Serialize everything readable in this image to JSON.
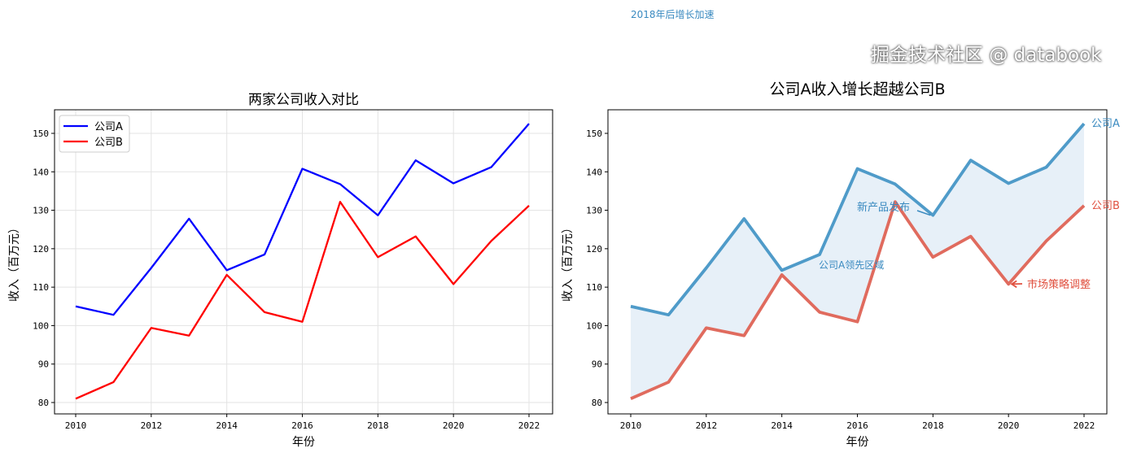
{
  "top_annotation": "2018年后增长加速",
  "watermark": "掘金技术社区 @ databook",
  "colors": {
    "a_left": "#0000ff",
    "b_left": "#ff0000",
    "a_right": "#4f9bc9",
    "b_right": "#e06b5e",
    "fill": "#e3edf7",
    "annot_blue": "#3a8ac0",
    "annot_red": "#e0503f"
  },
  "chart_data": [
    {
      "type": "line",
      "title": "两家公司收入对比",
      "xlabel": "年份",
      "ylabel": "收入（百万元）",
      "xlim": [
        2009.4,
        2022.6
      ],
      "ylim": [
        77.5,
        156
      ],
      "grid": true,
      "legend": "top-left",
      "x": [
        2010,
        2011,
        2012,
        2013,
        2014,
        2015,
        2016,
        2017,
        2018,
        2019,
        2020,
        2021,
        2022
      ],
      "xticks": [
        "2010",
        "2012",
        "2014",
        "2016",
        "2018",
        "2020",
        "2022"
      ],
      "yticks": [
        "80",
        "90",
        "100",
        "110",
        "120",
        "130",
        "140",
        "150"
      ],
      "series": [
        {
          "name": "公司A",
          "values": [
            105,
            102.8,
            115,
            127.8,
            114.4,
            118.5,
            140.8,
            136.8,
            128.7,
            143,
            137,
            141.2,
            152.5
          ]
        },
        {
          "name": "公司B",
          "values": [
            81,
            85.3,
            99.4,
            97.4,
            113.2,
            103.5,
            101,
            132.2,
            117.8,
            123.2,
            110.8,
            122,
            131.2
          ]
        }
      ]
    },
    {
      "type": "line",
      "title": "公司A收入增长超越公司B",
      "xlabel": "年份",
      "ylabel": "收入（百万元）",
      "xlim": [
        2009.4,
        2022.6
      ],
      "ylim": [
        77.5,
        156
      ],
      "grid": false,
      "x": [
        2010,
        2011,
        2012,
        2013,
        2014,
        2015,
        2016,
        2017,
        2018,
        2019,
        2020,
        2021,
        2022
      ],
      "xticks": [
        "2010",
        "2012",
        "2014",
        "2016",
        "2018",
        "2020",
        "2022"
      ],
      "yticks": [
        "80",
        "90",
        "100",
        "110",
        "120",
        "130",
        "140",
        "150"
      ],
      "series": [
        {
          "name": "公司A",
          "values": [
            105,
            102.8,
            115,
            127.8,
            114.4,
            118.5,
            140.8,
            136.8,
            128.7,
            143,
            137,
            141.2,
            152.5
          ]
        },
        {
          "name": "公司B",
          "values": [
            81,
            85.3,
            99.4,
            97.4,
            113.2,
            103.5,
            101,
            132.2,
            117.8,
            123.2,
            110.8,
            122,
            131.2
          ]
        }
      ],
      "annotations": [
        {
          "text": "新产品发布",
          "x": 2018,
          "y": 128.7
        },
        {
          "text": "公司A领先区域",
          "x": 2015,
          "y": 115
        },
        {
          "text": "市场策略调整",
          "x": 2020,
          "y": 110.8
        }
      ]
    }
  ]
}
